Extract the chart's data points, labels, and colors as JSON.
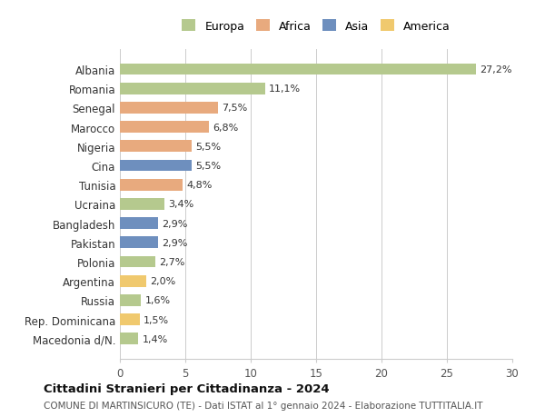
{
  "categories": [
    "Albania",
    "Romania",
    "Senegal",
    "Marocco",
    "Nigeria",
    "Cina",
    "Tunisia",
    "Ucraina",
    "Bangladesh",
    "Pakistan",
    "Polonia",
    "Argentina",
    "Russia",
    "Rep. Dominicana",
    "Macedonia d/N."
  ],
  "values": [
    27.2,
    11.1,
    7.5,
    6.8,
    5.5,
    5.5,
    4.8,
    3.4,
    2.9,
    2.9,
    2.7,
    2.0,
    1.6,
    1.5,
    1.4
  ],
  "labels": [
    "27,2%",
    "11,1%",
    "7,5%",
    "6,8%",
    "5,5%",
    "5,5%",
    "4,8%",
    "3,4%",
    "2,9%",
    "2,9%",
    "2,7%",
    "2,0%",
    "1,6%",
    "1,5%",
    "1,4%"
  ],
  "continents": [
    "Europa",
    "Europa",
    "Africa",
    "Africa",
    "Africa",
    "Asia",
    "Africa",
    "Europa",
    "Asia",
    "Asia",
    "Europa",
    "America",
    "Europa",
    "America",
    "Europa"
  ],
  "colors": {
    "Europa": "#b5c98e",
    "Africa": "#e8aa7e",
    "Asia": "#6e8fbe",
    "America": "#f0c96e"
  },
  "legend_order": [
    "Europa",
    "Africa",
    "Asia",
    "America"
  ],
  "title": "Cittadini Stranieri per Cittadinanza - 2024",
  "subtitle": "COMUNE DI MARTINSICURO (TE) - Dati ISTAT al 1° gennaio 2024 - Elaborazione TUTTITALIA.IT",
  "xlim": [
    0,
    30
  ],
  "xticks": [
    0,
    5,
    10,
    15,
    20,
    25,
    30
  ],
  "background_color": "#ffffff",
  "grid_color": "#cccccc",
  "bar_height": 0.6
}
